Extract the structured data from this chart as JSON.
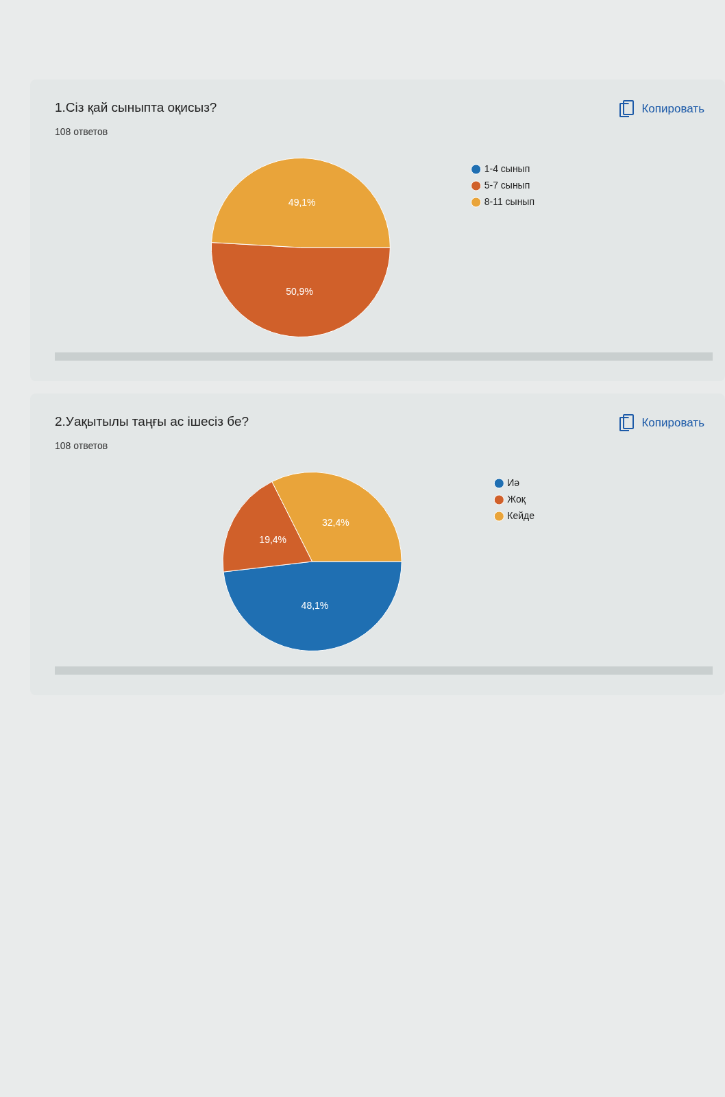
{
  "chart_data": [
    {
      "type": "pie",
      "title": "1.Сіз қай сыныпта оқисыз?",
      "subtitle": "108 ответов",
      "categories": [
        "1-4 сынып",
        "5-7 сынып",
        "8-11 сынып"
      ],
      "values": [
        0,
        50.9,
        49.1
      ],
      "colors": [
        "#1f6fb2",
        "#d0602a",
        "#e9a43a"
      ],
      "value_labels": [
        null,
        "50,9%",
        "49,1%"
      ],
      "legend": "top right",
      "annotations": [
        "Копировать"
      ]
    },
    {
      "type": "pie",
      "title": "2.Уақытылы таңғы ас ішесіз бе?",
      "subtitle": "108 ответов",
      "categories": [
        "Иә",
        "Жоқ",
        "Кейде"
      ],
      "values": [
        48.1,
        19.4,
        32.4
      ],
      "colors": [
        "#1f6fb2",
        "#d0602a",
        "#e9a43a"
      ],
      "value_labels": [
        "48,1%",
        "19,4%",
        "32,4%"
      ],
      "legend": "top right",
      "annotations": [
        "Копировать"
      ]
    }
  ]
}
